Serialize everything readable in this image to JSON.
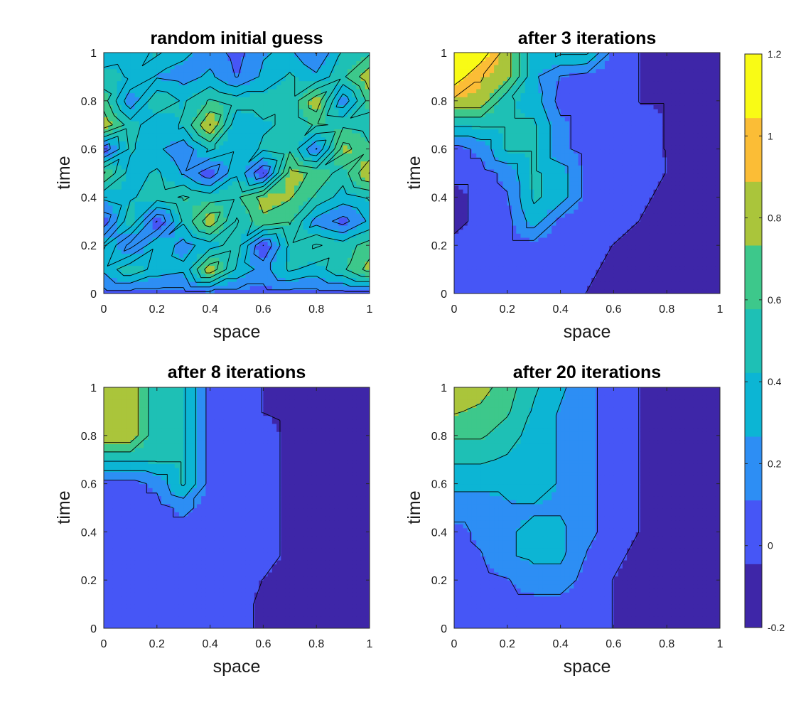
{
  "chart_data": {
    "type": "heatmap",
    "subtype": "filled-contour",
    "layout": "2x2 subplots with shared colorbar",
    "colormap": "parula",
    "colors": [
      "#3e26a8",
      "#4656f6",
      "#2d8ef4",
      "#0cb5d4",
      "#1ec0b5",
      "#3dc88b",
      "#aac53b",
      "#fbbd36",
      "#f9fb15"
    ],
    "colorbar": {
      "range": [
        -0.2,
        1.2
      ],
      "ticks": [
        -0.2,
        0,
        0.2,
        0.4,
        0.6,
        0.8,
        1,
        1.2
      ],
      "tick_labels": [
        "-0.2",
        "0",
        "0.2",
        "0.4",
        "0.6",
        "0.8",
        "1",
        "1.2"
      ]
    },
    "panels": [
      {
        "title": "random initial guess",
        "xlabel": "space",
        "ylabel": "time",
        "xlim": [
          0,
          1
        ],
        "ylim": [
          0,
          1
        ],
        "xticks": [
          0,
          0.2,
          0.4,
          0.6,
          0.8,
          1
        ],
        "xtick_labels": [
          "0",
          "0.2",
          "0.4",
          "0.6",
          "0.8",
          "1"
        ],
        "yticks": [
          0,
          0.2,
          0.4,
          0.6,
          0.8,
          1
        ],
        "ytick_labels": [
          "0",
          "0.2",
          "0.4",
          "0.6",
          "0.8",
          "1"
        ],
        "grid_x": [
          0,
          0.1,
          0.2,
          0.3,
          0.4,
          0.5,
          0.6,
          0.7,
          0.8,
          0.9,
          1.0
        ],
        "grid_y": [
          0,
          0.1,
          0.2,
          0.3,
          0.4,
          0.5,
          0.6,
          0.7,
          0.8,
          0.9,
          1.0
        ],
        "z": [
          [
            0.05,
            0.05,
            0.05,
            0.05,
            0.05,
            0.05,
            0.05,
            0.05,
            0.05,
            0.05,
            0.05
          ],
          [
            0.3,
            0.55,
            0.35,
            0.3,
            0.85,
            0.4,
            0.2,
            0.45,
            0.35,
            0.55,
            0.8
          ],
          [
            0.45,
            0.05,
            0.4,
            0.2,
            0.35,
            0.5,
            -0.05,
            0.45,
            0.6,
            0.5,
            0.65
          ],
          [
            0.0,
            0.55,
            -0.05,
            0.45,
            0.85,
            0.4,
            0.7,
            0.6,
            0.2,
            0.05,
            0.3
          ],
          [
            0.3,
            0.4,
            0.5,
            0.6,
            0.5,
            0.55,
            0.8,
            0.75,
            0.55,
            0.35,
            0.45
          ],
          [
            0.75,
            0.35,
            0.45,
            0.25,
            0.0,
            0.4,
            -0.05,
            0.8,
            0.7,
            0.5,
            0.9
          ],
          [
            0.0,
            0.45,
            0.3,
            0.15,
            0.45,
            0.3,
            0.45,
            0.55,
            0.1,
            0.8,
            0.6
          ],
          [
            0.85,
            0.5,
            0.3,
            0.45,
            0.9,
            0.3,
            0.4,
            0.45,
            0.6,
            0.55,
            0.5
          ],
          [
            0.65,
            0.15,
            0.55,
            0.4,
            0.6,
            0.5,
            0.5,
            0.45,
            0.85,
            0.15,
            0.65
          ],
          [
            0.5,
            0.4,
            0.25,
            0.2,
            0.3,
            0.1,
            0.3,
            0.45,
            0.3,
            0.55,
            0.85
          ],
          [
            0.3,
            0.35,
            0.45,
            0.3,
            0.2,
            0.05,
            0.25,
            0.3,
            0.1,
            0.45,
            0.55
          ]
        ]
      },
      {
        "title": "after 3 iterations",
        "xlabel": "space",
        "ylabel": "time",
        "xlim": [
          0,
          1
        ],
        "ylim": [
          0,
          1
        ],
        "xticks": [
          0,
          0.2,
          0.4,
          0.6,
          0.8,
          1
        ],
        "xtick_labels": [
          "0",
          "0.2",
          "0.4",
          "0.6",
          "0.8",
          "1"
        ],
        "yticks": [
          0,
          0.2,
          0.4,
          0.6,
          0.8,
          1
        ],
        "ytick_labels": [
          "0",
          "0.2",
          "0.4",
          "0.6",
          "0.8",
          "1"
        ],
        "grid_x": [
          0,
          0.1,
          0.2,
          0.3,
          0.4,
          0.5,
          0.6,
          0.7,
          0.8,
          0.9,
          1.0
        ],
        "grid_y": [
          0,
          0.1,
          0.2,
          0.3,
          0.4,
          0.5,
          0.6,
          0.7,
          0.8,
          0.9,
          1.0
        ],
        "z": [
          [
            0.05,
            0.05,
            0.05,
            0.05,
            0.05,
            -0.05,
            -0.15,
            -0.15,
            -0.15,
            -0.15,
            -0.15
          ],
          [
            0.05,
            0.05,
            0.05,
            0.05,
            0.05,
            0.0,
            -0.1,
            -0.15,
            -0.15,
            -0.15,
            -0.2
          ],
          [
            0.05,
            0.05,
            0.05,
            0.05,
            0.05,
            0.05,
            -0.05,
            -0.15,
            -0.15,
            -0.15,
            -0.15
          ],
          [
            -0.15,
            0.05,
            0.05,
            0.35,
            0.05,
            0.05,
            0.05,
            -0.05,
            -0.15,
            -0.15,
            -0.15
          ],
          [
            -0.15,
            0.05,
            0.1,
            0.45,
            0.35,
            0.05,
            0.05,
            0.0,
            -0.1,
            -0.15,
            -0.15
          ],
          [
            0.05,
            0.05,
            0.15,
            0.45,
            0.35,
            0.05,
            0.05,
            0.05,
            -0.05,
            -0.15,
            -0.15
          ],
          [
            0.05,
            0.15,
            0.45,
            0.45,
            0.15,
            0.05,
            0.05,
            0.0,
            -0.05,
            -0.15,
            -0.15
          ],
          [
            0.45,
            0.45,
            0.45,
            0.45,
            0.15,
            0.05,
            0.05,
            0.0,
            -0.05,
            -0.15,
            -0.15
          ],
          [
            0.85,
            0.85,
            0.45,
            0.35,
            0.05,
            0.05,
            0.05,
            -0.05,
            -0.05,
            -0.15,
            -0.15
          ],
          [
            1.15,
            0.9,
            0.8,
            0.3,
            0.1,
            0.05,
            0.05,
            -0.05,
            -0.1,
            -0.15,
            -0.15
          ],
          [
            1.2,
            1.15,
            0.8,
            0.3,
            0.45,
            0.45,
            0.05,
            -0.05,
            -0.15,
            -0.15,
            -0.15
          ]
        ]
      },
      {
        "title": "after 8 iterations",
        "xlabel": "space",
        "ylabel": "time",
        "xlim": [
          0,
          1
        ],
        "ylim": [
          0,
          1
        ],
        "xticks": [
          0,
          0.2,
          0.4,
          0.6,
          0.8,
          1
        ],
        "xtick_labels": [
          "0",
          "0.2",
          "0.4",
          "0.6",
          "0.8",
          "1"
        ],
        "yticks": [
          0,
          0.2,
          0.4,
          0.6,
          0.8,
          1
        ],
        "ytick_labels": [
          "0",
          "0.2",
          "0.4",
          "0.6",
          "0.8",
          "1"
        ],
        "grid_x": [
          0,
          0.1,
          0.2,
          0.3,
          0.4,
          0.5,
          0.6,
          0.7,
          0.8,
          0.9,
          1.0
        ],
        "grid_y": [
          0,
          0.1,
          0.2,
          0.3,
          0.4,
          0.5,
          0.6,
          0.7,
          0.8,
          0.9,
          1.0
        ],
        "z": [
          [
            0.05,
            0.05,
            0.05,
            0.05,
            0.05,
            0.05,
            -0.1,
            -0.15,
            -0.15,
            -0.15,
            -0.15
          ],
          [
            0.05,
            0.05,
            0.05,
            0.05,
            0.05,
            0.05,
            -0.1,
            -0.15,
            -0.15,
            -0.15,
            -0.15
          ],
          [
            0.05,
            0.05,
            0.05,
            0.05,
            0.05,
            0.05,
            -0.05,
            -0.15,
            -0.15,
            -0.15,
            -0.2
          ],
          [
            0.05,
            0.05,
            0.05,
            0.05,
            0.05,
            0.05,
            0.05,
            -0.1,
            -0.15,
            -0.15,
            -0.2
          ],
          [
            0.05,
            0.05,
            0.05,
            0.05,
            0.05,
            0.05,
            0.05,
            -0.1,
            -0.15,
            -0.15,
            -0.15
          ],
          [
            0.05,
            0.05,
            0.05,
            0.15,
            0.05,
            0.05,
            0.05,
            -0.1,
            -0.15,
            -0.15,
            -0.15
          ],
          [
            0.05,
            0.05,
            0.15,
            0.45,
            0.05,
            0.05,
            0.05,
            -0.1,
            -0.15,
            -0.15,
            -0.15
          ],
          [
            0.45,
            0.45,
            0.45,
            0.45,
            0.05,
            0.05,
            0.05,
            -0.1,
            -0.15,
            -0.15,
            -0.15
          ],
          [
            0.85,
            0.85,
            0.45,
            0.45,
            0.05,
            0.05,
            0.05,
            -0.1,
            -0.15,
            -0.15,
            -0.15
          ],
          [
            0.85,
            0.85,
            0.45,
            0.45,
            0.05,
            0.05,
            -0.05,
            -0.1,
            -0.15,
            -0.15,
            -0.2
          ],
          [
            0.85,
            0.85,
            0.45,
            0.45,
            0.05,
            0.05,
            -0.05,
            -0.1,
            -0.15,
            -0.15,
            -0.15
          ]
        ]
      },
      {
        "title": "after 20 iterations",
        "xlabel": "space",
        "ylabel": "time",
        "xlim": [
          0,
          1
        ],
        "ylim": [
          0,
          1
        ],
        "xticks": [
          0,
          0.2,
          0.4,
          0.6,
          0.8,
          1
        ],
        "xtick_labels": [
          "0",
          "0.2",
          "0.4",
          "0.6",
          "0.8",
          "1"
        ],
        "yticks": [
          0,
          0.2,
          0.4,
          0.6,
          0.8,
          1
        ],
        "ytick_labels": [
          "0",
          "0.2",
          "0.4",
          "0.6",
          "0.8",
          "1"
        ],
        "grid_x": [
          0,
          0.1,
          0.2,
          0.3,
          0.4,
          0.5,
          0.6,
          0.7,
          0.8,
          0.9,
          1.0
        ],
        "grid_y": [
          0,
          0.1,
          0.2,
          0.3,
          0.4,
          0.5,
          0.6,
          0.7,
          0.8,
          0.9,
          1.0
        ],
        "z": [
          [
            0.05,
            0.05,
            0.05,
            0.05,
            0.05,
            0.05,
            -0.05,
            -0.1,
            -0.15,
            -0.15,
            -0.2
          ],
          [
            0.05,
            0.05,
            0.05,
            0.05,
            0.05,
            0.05,
            -0.05,
            -0.1,
            -0.15,
            -0.15,
            -0.2
          ],
          [
            0.05,
            0.05,
            0.1,
            0.2,
            0.2,
            0.05,
            -0.05,
            -0.1,
            -0.15,
            -0.15,
            -0.15
          ],
          [
            0.05,
            0.1,
            0.25,
            0.3,
            0.3,
            0.1,
            0.0,
            -0.1,
            -0.15,
            -0.15,
            -0.15
          ],
          [
            0.05,
            0.15,
            0.25,
            0.3,
            0.3,
            0.15,
            0.05,
            -0.05,
            -0.1,
            -0.15,
            -0.15
          ],
          [
            0.2,
            0.2,
            0.25,
            0.25,
            0.25,
            0.15,
            0.05,
            -0.05,
            -0.1,
            -0.15,
            -0.15
          ],
          [
            0.3,
            0.3,
            0.3,
            0.35,
            0.25,
            0.15,
            0.05,
            -0.05,
            -0.1,
            -0.15,
            -0.15
          ],
          [
            0.45,
            0.45,
            0.4,
            0.35,
            0.25,
            0.15,
            0.05,
            -0.05,
            -0.1,
            -0.15,
            -0.15
          ],
          [
            0.6,
            0.6,
            0.5,
            0.35,
            0.25,
            0.15,
            0.05,
            -0.05,
            -0.1,
            -0.15,
            -0.15
          ],
          [
            0.75,
            0.7,
            0.6,
            0.4,
            0.25,
            0.15,
            0.05,
            -0.05,
            -0.1,
            -0.15,
            -0.15
          ],
          [
            0.85,
            0.8,
            0.65,
            0.45,
            0.3,
            0.15,
            0.05,
            -0.05,
            -0.1,
            -0.15,
            -0.15
          ]
        ]
      }
    ]
  }
}
